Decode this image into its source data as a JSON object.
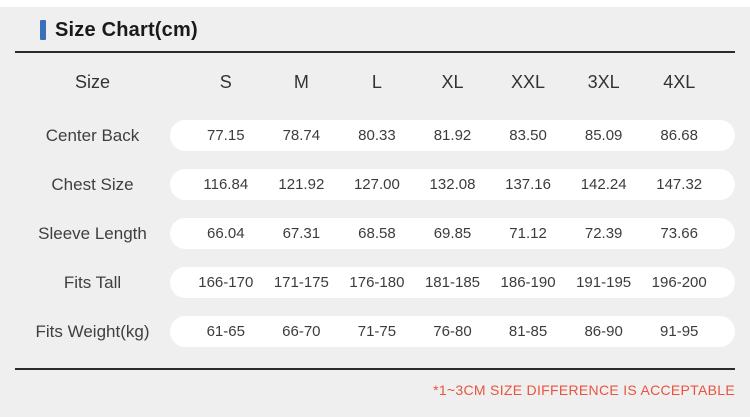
{
  "page": {
    "title": "Size Chart(cm)",
    "note": "*1~3CM SIZE DIFFERENCE IS ACCEPTABLE",
    "colors": {
      "accent": "#3a70b8",
      "note": "#e9543f",
      "background": "#efefef",
      "divider": "#2b2b2b",
      "row_pill": "#ffffff"
    }
  },
  "chart_data": {
    "type": "table",
    "title": "Size Chart(cm)",
    "columns": [
      "Size",
      "S",
      "M",
      "L",
      "XL",
      "XXL",
      "3XL",
      "4XL"
    ],
    "rows": [
      {
        "label": "Center Back",
        "values": [
          "77.15",
          "78.74",
          "80.33",
          "81.92",
          "83.50",
          "85.09",
          "86.68"
        ]
      },
      {
        "label": "Chest Size",
        "values": [
          "116.84",
          "121.92",
          "127.00",
          "132.08",
          "137.16",
          "142.24",
          "147.32"
        ]
      },
      {
        "label": "Sleeve Length",
        "values": [
          "66.04",
          "67.31",
          "68.58",
          "69.85",
          "71.12",
          "72.39",
          "73.66"
        ]
      },
      {
        "label": "Fits Tall",
        "values": [
          "166-170",
          "171-175",
          "176-180",
          "181-185",
          "186-190",
          "191-195",
          "196-200"
        ]
      },
      {
        "label": "Fits Weight(kg)",
        "values": [
          "61-65",
          "66-70",
          "71-75",
          "76-80",
          "81-85",
          "86-90",
          "91-95"
        ]
      }
    ]
  }
}
